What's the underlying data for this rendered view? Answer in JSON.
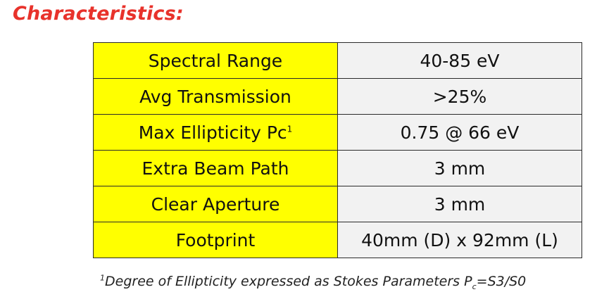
{
  "heading": "Characteristics:",
  "rows": [
    {
      "label": "Spectral Range",
      "label_sup": "",
      "value": "40-85 eV"
    },
    {
      "label": "Avg Transmission",
      "label_sup": "",
      "value": ">25%"
    },
    {
      "label": "Max Ellipticity Pc",
      "label_sup": "1",
      "value": "0.75 @ 66 eV"
    },
    {
      "label": "Extra Beam Path",
      "label_sup": "",
      "value": "3 mm"
    },
    {
      "label": "Clear Aperture",
      "label_sup": "",
      "value": "3 mm"
    },
    {
      "label": "Footprint",
      "label_sup": "",
      "value": "40mm (D) x 92mm (L)"
    }
  ],
  "footnote": {
    "marker": "1",
    "text": "Degree of Ellipticity expressed as Stokes Parameters P",
    "subscript": "c",
    "tail": "=S3/S0"
  },
  "colors": {
    "heading": "#e8322b",
    "label_cell": "#ffff00",
    "value_cell": "#f2f2f2"
  }
}
